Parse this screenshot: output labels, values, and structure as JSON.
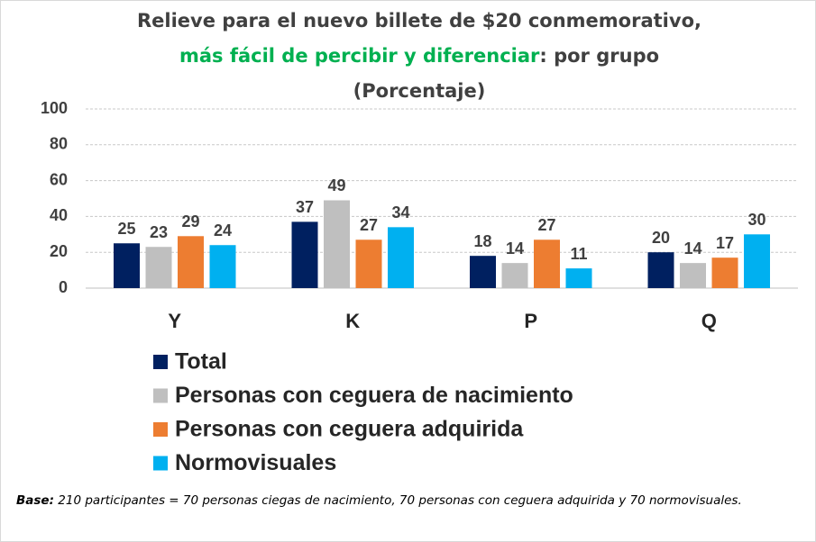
{
  "chart_data": {
    "type": "bar",
    "title": "Relieve para el nuevo billete de $20 conmemorativo,",
    "title_highlight": "más fácil de percibir y diferenciar",
    "title_rest": ": por grupo",
    "subtitle": "(Porcentaje)",
    "categories": [
      "Y",
      "K",
      "P",
      "Q"
    ],
    "series": [
      {
        "name": "Total",
        "color": "#002060",
        "values": [
          25,
          37,
          18,
          20
        ]
      },
      {
        "name": "Personas con ceguera de nacimiento",
        "color": "#bfbfbf",
        "values": [
          23,
          49,
          14,
          14
        ]
      },
      {
        "name": "Personas con ceguera adquirida",
        "color": "#ed7d31",
        "values": [
          29,
          27,
          27,
          17
        ]
      },
      {
        "name": "Normovisuales",
        "color": "#00b0f0",
        "values": [
          24,
          34,
          11,
          30
        ]
      }
    ],
    "ylim": [
      0,
      100
    ],
    "yticks": [
      0,
      20,
      40,
      60,
      80,
      100
    ],
    "grid": true
  },
  "footnote": {
    "label": "Base:",
    "text": " 210 participantes = 70 personas ciegas de nacimiento, 70 personas con ceguera adquirida y 70 normovisuales."
  }
}
